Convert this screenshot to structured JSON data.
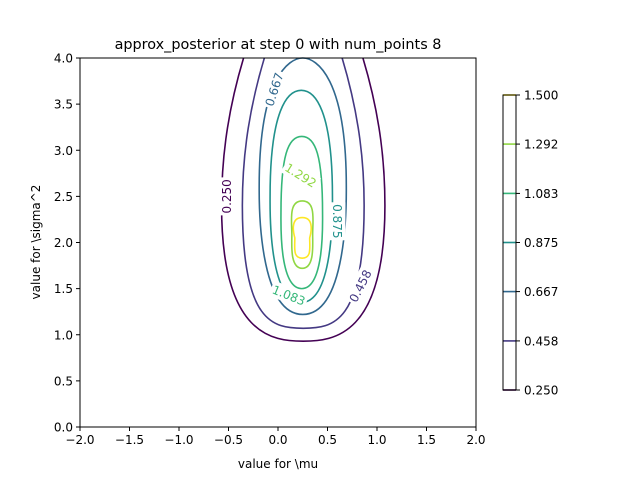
{
  "chart_data": {
    "type": "contour",
    "title": "approx_posterior at step 0 with num_points 8",
    "xlabel": "value for \\mu",
    "ylabel": "value for \\sigma^2",
    "xlim": [
      -2.0,
      2.0
    ],
    "ylim": [
      0.0,
      4.0
    ],
    "xticks": [
      "−2.0",
      "−1.5",
      "−1.0",
      "−0.5",
      "0.0",
      "0.5",
      "1.0",
      "1.5",
      "2.0"
    ],
    "yticks": [
      "0.0",
      "0.5",
      "1.0",
      "1.5",
      "2.0",
      "2.5",
      "3.0",
      "3.5",
      "4.0"
    ],
    "grid": false,
    "colormap": "viridis",
    "levels": [
      {
        "value": 0.25,
        "label": "0.250",
        "color": "#440154",
        "contour": {
          "mu_left": -0.57,
          "mu_right": 1.08,
          "sigma_bottom": 0.93,
          "sigma_top": 4.0,
          "clipped_top": true
        }
      },
      {
        "value": 0.458,
        "label": "0.458",
        "color": "#443983",
        "contour": {
          "mu_left": -0.36,
          "mu_right": 0.87,
          "sigma_bottom": 1.07,
          "sigma_top": 4.0,
          "clipped_top": true
        }
      },
      {
        "value": 0.667,
        "label": "0.667",
        "color": "#31688e",
        "contour": {
          "mu_left": -0.19,
          "mu_right": 0.69,
          "sigma_bottom": 1.22,
          "sigma_top": 4.0,
          "clipped_top": false
        }
      },
      {
        "value": 0.875,
        "label": "0.875",
        "color": "#21918c",
        "contour": {
          "mu_left": -0.08,
          "mu_right": 0.55,
          "sigma_bottom": 1.35,
          "sigma_top": 3.65,
          "clipped_top": false
        }
      },
      {
        "value": 1.083,
        "label": "1.083",
        "color": "#35b779",
        "contour": {
          "mu_left": 0.03,
          "mu_right": 0.45,
          "sigma_bottom": 1.5,
          "sigma_top": 3.15,
          "clipped_top": false
        }
      },
      {
        "value": 1.292,
        "label": "1.292",
        "color": "#90d743",
        "contour": {
          "mu_left": 0.14,
          "mu_right": 0.35,
          "sigma_bottom": 1.72,
          "sigma_top": 2.45,
          "clipped_top": false
        }
      }
    ],
    "colorbar": {
      "min": 0.25,
      "max": 1.5,
      "ticks": [
        {
          "value": 0.25,
          "label": "0.250",
          "color": "#440154"
        },
        {
          "value": 0.458,
          "label": "0.458",
          "color": "#443983"
        },
        {
          "value": 0.667,
          "label": "0.667",
          "color": "#31688e"
        },
        {
          "value": 0.875,
          "label": "0.875",
          "color": "#21918c"
        },
        {
          "value": 1.083,
          "label": "1.083",
          "color": "#35b779"
        },
        {
          "value": 1.292,
          "label": "1.292",
          "color": "#90d743"
        },
        {
          "value": 1.5,
          "label": "1.500",
          "color": "#fde725"
        }
      ]
    },
    "innermost_contour": {
      "value": 1.5,
      "color": "#fde725",
      "mu_left": 0.17,
      "mu_right": 0.32,
      "sigma_bottom": 1.83,
      "sigma_top": 2.27
    },
    "contour_labels": [
      {
        "text": "0.250",
        "mu": -0.52,
        "sigma": 2.5,
        "rotation": -90,
        "color": "#440154"
      },
      {
        "text": "0.458",
        "mu": 0.83,
        "sigma": 1.53,
        "rotation": -63,
        "color": "#443983"
      },
      {
        "text": "0.667",
        "mu": -0.04,
        "sigma": 3.66,
        "rotation": -72,
        "color": "#31688e"
      },
      {
        "text": "0.875",
        "mu": 0.6,
        "sigma": 2.23,
        "rotation": 90,
        "color": "#21918c"
      },
      {
        "text": "1.083",
        "mu": 0.11,
        "sigma": 1.43,
        "rotation": 22,
        "color": "#35b779"
      },
      {
        "text": "1.292",
        "mu": 0.23,
        "sigma": 2.73,
        "rotation": 32,
        "color": "#90d743"
      }
    ]
  }
}
